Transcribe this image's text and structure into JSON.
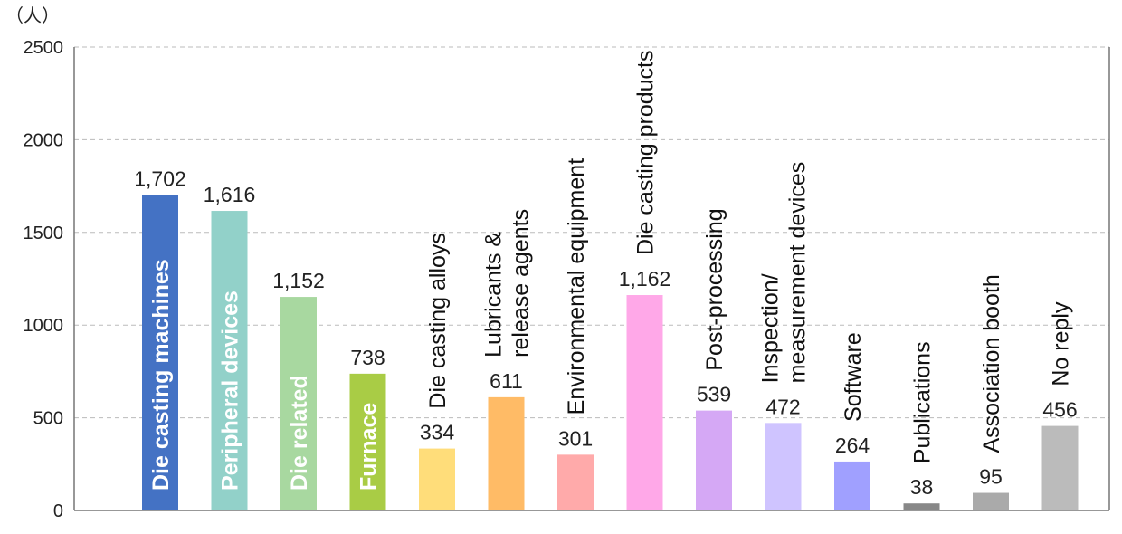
{
  "chart_data": {
    "type": "bar",
    "unit_label": "（人）",
    "categories": [
      "Die casting machines",
      "Peripheral devices",
      "Die related",
      "Furnace",
      "Die casting alloys",
      "Lubricants & release agents",
      "Environmental equipment",
      "Die casting products",
      "Post-processing",
      "Inspection/ measurement devices",
      "Software",
      "Publications",
      "Association booth",
      "No reply"
    ],
    "values": [
      1702,
      1616,
      1152,
      738,
      334,
      611,
      301,
      1162,
      539,
      472,
      264,
      38,
      95,
      456
    ],
    "value_labels": [
      "1,702",
      "1,616",
      "1,152",
      "738",
      "334",
      "611",
      "301",
      "1,162",
      "539",
      "472",
      "264",
      "38",
      "95",
      "456"
    ],
    "colors": [
      "#4472c4",
      "#92d1c9",
      "#a8d8a0",
      "#a9cc45",
      "#ffdd7a",
      "#ffbb66",
      "#ffaaaa",
      "#ffa8e8",
      "#d5a8f5",
      "#cfc4ff",
      "#a0a0ff",
      "#888888",
      "#aaaaaa",
      "#bbbbbb"
    ],
    "label_inside_bar": [
      true,
      true,
      true,
      true,
      false,
      false,
      false,
      false,
      false,
      false,
      false,
      false,
      false,
      false
    ],
    "yticks": [
      "0",
      "500",
      "1000",
      "1500",
      "2000",
      "2500"
    ],
    "ylim": [
      0,
      2500
    ],
    "grid": true
  }
}
